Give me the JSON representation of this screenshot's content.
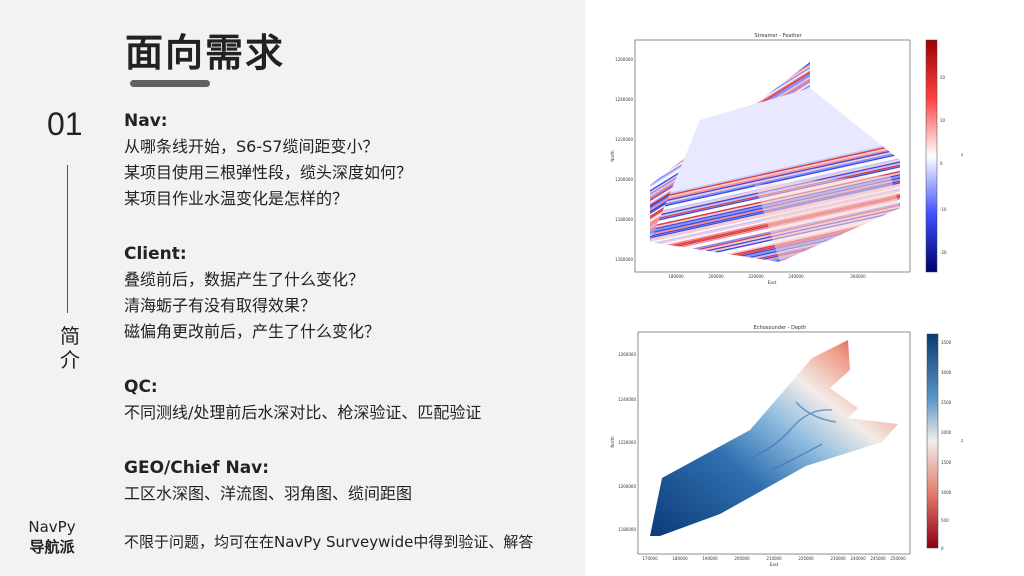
{
  "header": {
    "title": "面向需求"
  },
  "section": {
    "number": "01",
    "vertical_label": [
      "简",
      "介"
    ]
  },
  "brand": {
    "line1": "NavPy",
    "line2": "导航派"
  },
  "sections": [
    {
      "heading": "Nav:",
      "lines": [
        "从哪条线开始，S6-S7缆间距变小？",
        "某项目使用三根弹性段，缆头深度如何？",
        "某项目作业水温变化是怎样的？"
      ]
    },
    {
      "heading": "Client:",
      "lines": [
        "叠缆前后，数据产生了什么变化？",
        "清海蛎子有没有取得效果？",
        "磁偏角更改前后，产生了什么变化？"
      ]
    },
    {
      "heading": "QC:",
      "lines": [
        "不同测线/处理前后水深对比、枪深验证、匹配验证"
      ]
    },
    {
      "heading": "GEO/Chief Nav:",
      "lines": [
        "工区水深图、洋流图、羽角图、缆间距图"
      ]
    }
  ],
  "footer_note": "不限于问题，均可在在NavPy Surveywide中得到验证、解答",
  "charts": {
    "feather": {
      "title": "Streamer - Feather",
      "xlabel": "East",
      "ylabel": "North",
      "colorbar_label": "z",
      "x_ticks": [
        "180000",
        "200000",
        "220000",
        "240000",
        "260000"
      ],
      "y_ticks": [
        "1260000",
        "1240000",
        "1220000",
        "1200000",
        "1180000",
        "1160000"
      ],
      "cbar_ticks": [
        "20",
        "10",
        "0",
        "-10",
        "-20"
      ],
      "colors": {
        "low": "#00008b",
        "mid": "#ffffff",
        "high": "#c00000"
      }
    },
    "depth": {
      "title": "Echosounder - Depth",
      "xlabel": "East",
      "ylabel": "North",
      "colorbar_label": "z",
      "x_ticks": [
        "170000",
        "180000",
        "190000",
        "200000",
        "210000",
        "220000",
        "230000",
        "240000",
        "245000",
        "250000"
      ],
      "y_ticks": [
        "1260000",
        "1240000",
        "1220000",
        "1200000",
        "1180000"
      ],
      "cbar_ticks": [
        "3500",
        "3000",
        "2500",
        "2000",
        "1500",
        "1000",
        "500",
        "0"
      ],
      "colors": {
        "low": "#8b0015",
        "mid": "#f5f0ee",
        "high": "#0b3a73"
      }
    }
  }
}
